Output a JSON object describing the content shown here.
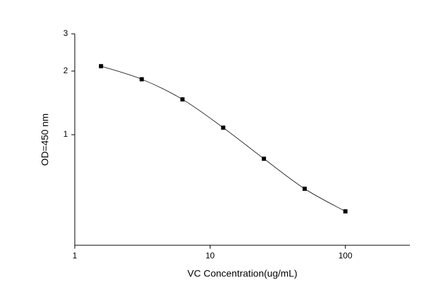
{
  "chart_data": {
    "type": "line",
    "x_label": "VC Concentration(ug/mL)",
    "y_label": "OD=450 nm",
    "x": [
      1.5625,
      3.125,
      6.25,
      12.5,
      25,
      50,
      100
    ],
    "series": [
      {
        "color": "#000000",
        "values": [
          2.11,
          1.83,
          1.47,
          1.08,
          0.77,
          0.555,
          0.434
        ]
      }
    ],
    "xlim": [
      1,
      300
    ],
    "ylim": [
      0.3,
      3
    ],
    "xticks": [
      1,
      10,
      100
    ],
    "yticks": [
      1,
      2,
      3
    ],
    "xscale": "log",
    "yscale": "log",
    "markers": true
  }
}
